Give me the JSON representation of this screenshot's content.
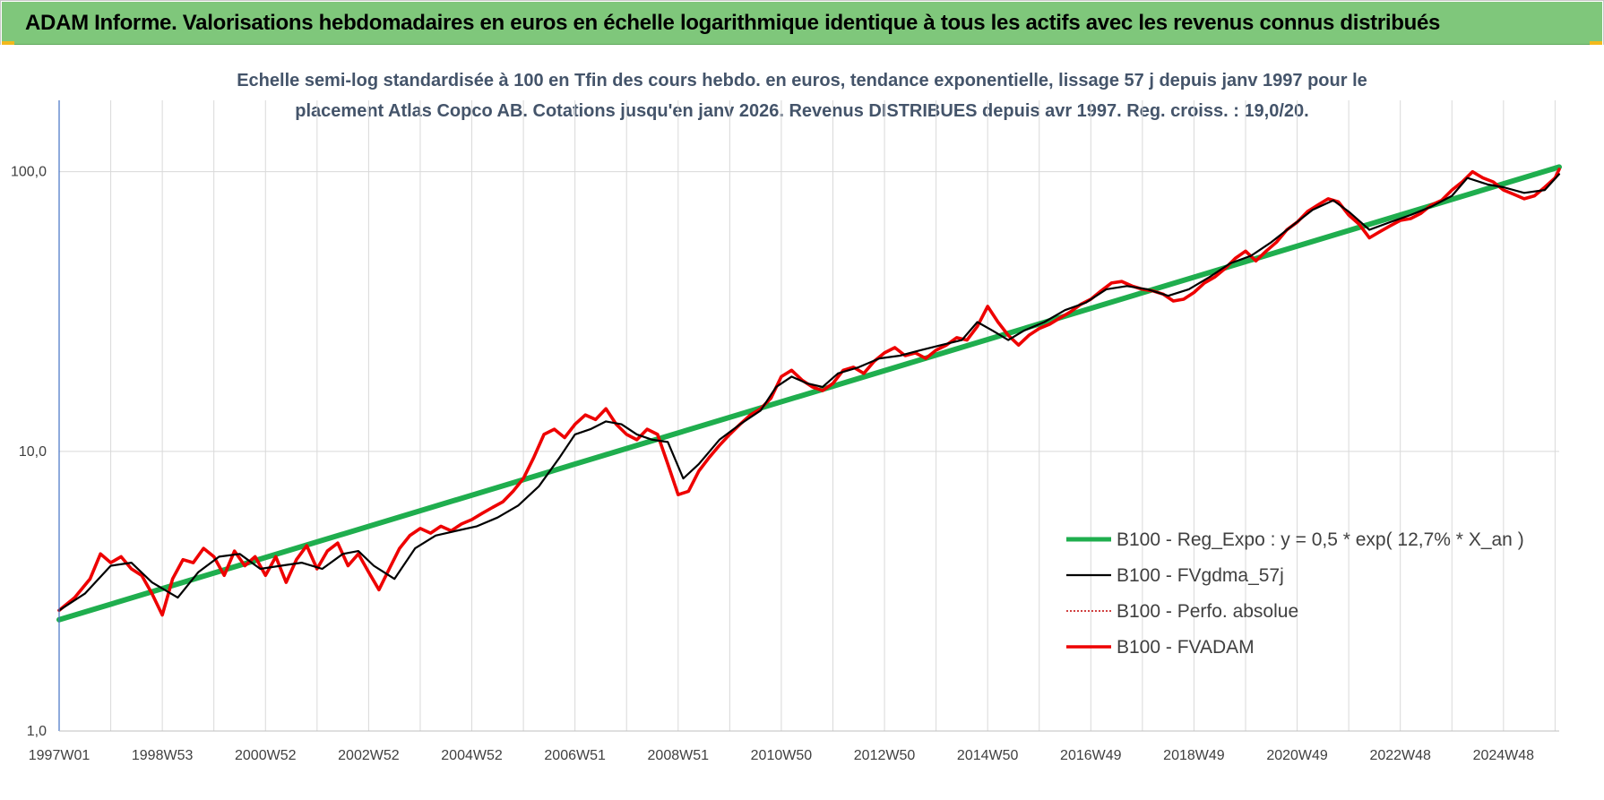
{
  "banner": {
    "title": "ADAM Informe. Valorisations hebdomadaires en euros en échelle logarithmique identique à tous les actifs avec les revenus connus distribués"
  },
  "colors": {
    "banner_bg": "#7fc77b",
    "regression": "#1fae4e",
    "smoothed": "#000000",
    "absolute": "#c00000",
    "fvadam": "#ee0000"
  },
  "chart_data": {
    "type": "line",
    "title_lines": [
      "Echelle semi-log standardisée à 100 en Tfin des cours hebdo. en euros, tendance exponentielle, lissage 57 j depuis janv 1997 pour le",
      "placement Atlas Copco AB. Cotations jusqu'en janv 2026. Revenus DISTRIBUES depuis avr 1997. Reg. croiss. : 19,0/20."
    ],
    "y_scale": "log",
    "ylim": [
      1,
      180
    ],
    "y_ticks": [
      "1,0",
      "10,0",
      "100,0"
    ],
    "y_tick_values": [
      1,
      10,
      100
    ],
    "x_range": [
      1997.0,
      2026.08
    ],
    "x_tick_labels": [
      "1997W01",
      "1998W53",
      "2000W52",
      "2002W52",
      "2004W52",
      "2006W51",
      "2008W51",
      "2010W50",
      "2012W50",
      "2014W50",
      "2016W49",
      "2018W49",
      "2020W49",
      "2022W48",
      "2024W48"
    ],
    "x_tick_values": [
      1997.0,
      1999.0,
      2001.0,
      2003.0,
      2005.0,
      2007.0,
      2009.0,
      2011.0,
      2013.0,
      2015.0,
      2017.0,
      2019.0,
      2021.0,
      2023.0,
      2025.0
    ],
    "grid": true,
    "legend_position": "bottom-right",
    "series": [
      {
        "name": "B100 - Reg_Expo : y = 0,5 * exp( 12,7% *  X_an )",
        "kind": "regression",
        "x": [
          1997.0,
          2026.08
        ],
        "values": [
          2.5,
          104
        ]
      },
      {
        "name": "B100 - FVgdma_57j",
        "kind": "smoothed",
        "x": [
          1997.0,
          1997.5,
          1998.0,
          1998.4,
          1998.8,
          1999.3,
          1999.7,
          2000.1,
          2000.5,
          2000.9,
          2001.3,
          2001.7,
          2002.1,
          2002.5,
          2002.8,
          2003.1,
          2003.5,
          2003.9,
          2004.3,
          2004.7,
          2005.1,
          2005.5,
          2005.9,
          2006.3,
          2006.7,
          2007.0,
          2007.3,
          2007.6,
          2007.9,
          2008.2,
          2008.5,
          2008.8,
          2009.1,
          2009.4,
          2009.8,
          2010.2,
          2010.6,
          2010.9,
          2011.2,
          2011.5,
          2011.8,
          2012.1,
          2012.5,
          2012.9,
          2013.3,
          2013.7,
          2014.1,
          2014.5,
          2014.8,
          2015.1,
          2015.4,
          2015.7,
          2016.1,
          2016.5,
          2016.9,
          2017.3,
          2017.7,
          2018.1,
          2018.5,
          2018.9,
          2019.3,
          2019.7,
          2020.1,
          2020.5,
          2020.9,
          2021.3,
          2021.7,
          2022.0,
          2022.4,
          2022.8,
          2023.2,
          2023.6,
          2024.0,
          2024.3,
          2024.7,
          2025.0,
          2025.4,
          2025.8,
          2026.08
        ],
        "values": [
          2.7,
          3.1,
          3.9,
          4.0,
          3.4,
          3.0,
          3.7,
          4.2,
          4.3,
          3.8,
          3.9,
          4.0,
          3.8,
          4.3,
          4.4,
          3.9,
          3.5,
          4.5,
          5.0,
          5.2,
          5.4,
          5.8,
          6.4,
          7.5,
          9.5,
          11.5,
          12.0,
          12.8,
          12.5,
          11.5,
          11.0,
          10.8,
          8.0,
          9.0,
          11.0,
          12.5,
          14.0,
          17.0,
          18.5,
          17.5,
          17.0,
          19.0,
          20.0,
          21.5,
          22.0,
          23.0,
          24.0,
          25.0,
          29.0,
          27.0,
          25.0,
          27.0,
          29.0,
          32.0,
          34.0,
          38.0,
          39.0,
          38.0,
          36.0,
          38.0,
          42.0,
          47.0,
          50.0,
          56.0,
          64.0,
          73.0,
          79.0,
          72.0,
          62.0,
          66.0,
          70.0,
          75.0,
          82.0,
          95.0,
          90.0,
          88.0,
          84.0,
          86.0,
          98.0
        ]
      },
      {
        "name": "B100 - Perfo. absolue",
        "kind": "absolute",
        "x": [
          1997.0,
          1997.5,
          1998.0,
          1998.4,
          1998.8,
          1999.3,
          1999.7,
          2000.1,
          2000.5,
          2000.9,
          2001.3,
          2001.7,
          2002.1,
          2002.5,
          2002.8,
          2003.1,
          2003.5,
          2003.9,
          2004.3,
          2004.7,
          2005.1,
          2005.5,
          2005.9,
          2006.3,
          2006.7,
          2007.0,
          2007.3,
          2007.6,
          2007.9,
          2008.2,
          2008.5,
          2008.8,
          2009.1,
          2009.4,
          2009.8,
          2010.2,
          2010.6,
          2010.9,
          2011.2,
          2011.5,
          2011.8,
          2012.1,
          2012.5,
          2012.9,
          2013.3,
          2013.7,
          2014.1,
          2014.5,
          2014.8,
          2015.1,
          2015.4,
          2015.7,
          2016.1,
          2016.5,
          2016.9,
          2017.3,
          2017.7,
          2018.1,
          2018.5,
          2018.9,
          2019.3,
          2019.7,
          2020.1,
          2020.5,
          2020.9,
          2021.3,
          2021.7,
          2022.0,
          2022.4,
          2022.8,
          2023.2,
          2023.6,
          2024.0,
          2024.3,
          2024.7,
          2025.0,
          2025.4,
          2025.8,
          2026.08
        ],
        "values": [
          2.7,
          3.1,
          3.9,
          4.0,
          3.4,
          3.0,
          3.7,
          4.2,
          4.3,
          3.8,
          3.9,
          4.0,
          3.8,
          4.3,
          4.4,
          3.9,
          3.5,
          4.5,
          5.0,
          5.2,
          5.4,
          5.8,
          6.4,
          7.5,
          9.5,
          11.5,
          12.0,
          12.8,
          12.5,
          11.5,
          11.0,
          10.8,
          8.0,
          9.0,
          11.0,
          12.5,
          14.0,
          17.0,
          18.5,
          17.5,
          17.0,
          19.0,
          20.0,
          21.5,
          22.0,
          23.0,
          24.0,
          25.0,
          29.0,
          27.0,
          25.0,
          27.0,
          29.0,
          32.0,
          34.0,
          38.0,
          39.0,
          38.0,
          36.0,
          38.0,
          42.0,
          47.0,
          50.0,
          56.0,
          64.0,
          73.0,
          79.0,
          72.0,
          62.0,
          66.0,
          70.0,
          75.0,
          82.0,
          95.0,
          90.0,
          88.0,
          84.0,
          86.0,
          98.0
        ]
      },
      {
        "name": "B100 - FVADAM",
        "kind": "fvadam",
        "x": [
          1997.0,
          1997.3,
          1997.6,
          1997.8,
          1998.0,
          1998.2,
          1998.4,
          1998.6,
          1998.8,
          1999.0,
          1999.2,
          1999.4,
          1999.6,
          1999.8,
          2000.0,
          2000.2,
          2000.4,
          2000.6,
          2000.8,
          2001.0,
          2001.2,
          2001.4,
          2001.6,
          2001.8,
          2002.0,
          2002.2,
          2002.4,
          2002.6,
          2002.8,
          2003.0,
          2003.2,
          2003.4,
          2003.6,
          2003.8,
          2004.0,
          2004.2,
          2004.4,
          2004.6,
          2004.8,
          2005.0,
          2005.2,
          2005.4,
          2005.6,
          2005.8,
          2006.0,
          2006.2,
          2006.4,
          2006.6,
          2006.8,
          2007.0,
          2007.2,
          2007.4,
          2007.6,
          2007.8,
          2008.0,
          2008.2,
          2008.4,
          2008.6,
          2008.8,
          2009.0,
          2009.2,
          2009.4,
          2009.6,
          2009.8,
          2010.0,
          2010.2,
          2010.4,
          2010.6,
          2010.8,
          2011.0,
          2011.2,
          2011.4,
          2011.6,
          2011.8,
          2012.0,
          2012.2,
          2012.4,
          2012.6,
          2012.8,
          2013.0,
          2013.2,
          2013.4,
          2013.6,
          2013.8,
          2014.0,
          2014.2,
          2014.4,
          2014.6,
          2014.8,
          2015.0,
          2015.2,
          2015.4,
          2015.6,
          2015.8,
          2016.0,
          2016.2,
          2016.4,
          2016.6,
          2016.8,
          2017.0,
          2017.2,
          2017.4,
          2017.6,
          2017.8,
          2018.0,
          2018.2,
          2018.4,
          2018.6,
          2018.8,
          2019.0,
          2019.2,
          2019.4,
          2019.6,
          2019.8,
          2020.0,
          2020.2,
          2020.4,
          2020.6,
          2020.8,
          2021.0,
          2021.2,
          2021.4,
          2021.6,
          2021.8,
          2022.0,
          2022.2,
          2022.4,
          2022.6,
          2022.8,
          2023.0,
          2023.2,
          2023.4,
          2023.6,
          2023.8,
          2024.0,
          2024.2,
          2024.4,
          2024.6,
          2024.8,
          2025.0,
          2025.2,
          2025.4,
          2025.6,
          2025.8,
          2026.0,
          2026.08
        ],
        "values": [
          2.7,
          3.0,
          3.5,
          4.3,
          4.0,
          4.2,
          3.8,
          3.6,
          3.1,
          2.6,
          3.5,
          4.1,
          4.0,
          4.5,
          4.2,
          3.6,
          4.4,
          3.9,
          4.2,
          3.6,
          4.2,
          3.4,
          4.1,
          4.6,
          3.8,
          4.4,
          4.7,
          3.9,
          4.3,
          3.7,
          3.2,
          3.8,
          4.5,
          5.0,
          5.3,
          5.1,
          5.4,
          5.2,
          5.5,
          5.7,
          6.0,
          6.3,
          6.6,
          7.2,
          8.0,
          9.5,
          11.5,
          12.0,
          11.2,
          12.5,
          13.5,
          13.0,
          14.2,
          12.5,
          11.5,
          11.0,
          12.0,
          11.5,
          9.0,
          7.0,
          7.2,
          8.5,
          9.5,
          10.5,
          11.5,
          12.5,
          13.5,
          14.2,
          15.5,
          18.5,
          19.5,
          18.0,
          17.0,
          16.5,
          17.5,
          19.5,
          20.0,
          19.0,
          21.0,
          22.5,
          23.5,
          22.0,
          22.5,
          21.5,
          23.0,
          24.0,
          25.5,
          25.0,
          28.0,
          33.0,
          29.0,
          26.0,
          24.0,
          26.0,
          27.5,
          28.5,
          30.0,
          31.5,
          33.5,
          35.0,
          37.5,
          40.0,
          40.5,
          39.0,
          38.0,
          37.5,
          36.5,
          34.5,
          35.0,
          37.0,
          40.0,
          42.0,
          45.0,
          49.0,
          52.0,
          48.0,
          52.0,
          56.0,
          62.0,
          66.0,
          72.0,
          76.0,
          80.0,
          78.0,
          70.0,
          65.0,
          58.0,
          61.0,
          64.0,
          67.0,
          68.0,
          71.0,
          76.0,
          79.0,
          86.0,
          92.0,
          100.0,
          95.0,
          92.0,
          86.0,
          83.0,
          80.0,
          82.0,
          88.0,
          95.0,
          102.0
        ]
      }
    ]
  }
}
